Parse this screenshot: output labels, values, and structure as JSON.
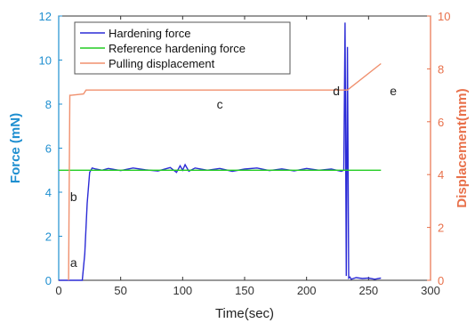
{
  "chart_data": {
    "type": "line",
    "x_axis": {
      "label": "Time(sec)",
      "lim": [
        0,
        300
      ],
      "ticks": [
        0,
        50,
        100,
        150,
        200,
        250,
        300
      ]
    },
    "y_left": {
      "label": "Force (mN)",
      "lim": [
        0,
        12
      ],
      "ticks": [
        0,
        2,
        4,
        6,
        8,
        10,
        12
      ],
      "color": "#1f8fd0"
    },
    "y_right": {
      "label": "Displacement(mm)",
      "lim": [
        0,
        10
      ],
      "ticks": [
        0,
        2,
        4,
        6,
        8,
        10
      ],
      "color": "#e8704a"
    },
    "legend_position": "top-left",
    "series": [
      {
        "name": "Hardening force",
        "axis": "left",
        "color": "#2b2bd6",
        "x": [
          0,
          19,
          21,
          23,
          25,
          27,
          30,
          35,
          40,
          50,
          60,
          70,
          80,
          90,
          95,
          98,
          100,
          102,
          105,
          110,
          120,
          130,
          140,
          150,
          160,
          170,
          180,
          190,
          200,
          210,
          220,
          228,
          230,
          231,
          232,
          233,
          234,
          235,
          236,
          240,
          245,
          250,
          255,
          260
        ],
        "y": [
          0,
          0,
          1.2,
          3.5,
          4.9,
          5.1,
          5.05,
          5.0,
          5.08,
          4.98,
          5.1,
          5.02,
          4.96,
          5.12,
          4.9,
          5.2,
          5.0,
          5.25,
          4.95,
          5.1,
          5.0,
          5.08,
          4.95,
          5.05,
          5.1,
          4.98,
          5.06,
          4.97,
          5.08,
          5.0,
          5.05,
          4.95,
          5.0,
          11.7,
          0.2,
          10.6,
          0.1,
          0.15,
          0.05,
          0.12,
          0.08,
          0.1,
          0.05,
          0.1
        ]
      },
      {
        "name": "Reference hardening force",
        "axis": "left",
        "color": "#22cc22",
        "x": [
          0,
          260
        ],
        "y": [
          5,
          5
        ]
      },
      {
        "name": "Pulling displacement",
        "axis": "right",
        "color": "#f0906e",
        "x": [
          8,
          9,
          10,
          20,
          22,
          230,
          233,
          260
        ],
        "y": [
          0,
          7.0,
          7.0,
          7.05,
          7.2,
          7.2,
          7.2,
          8.2
        ]
      }
    ],
    "annotations": [
      {
        "text": "a",
        "x": 12,
        "y": 0.6
      },
      {
        "text": "b",
        "x": 12,
        "y": 3.6
      },
      {
        "text": "c",
        "x": 130,
        "y": 7.8
      },
      {
        "text": "d",
        "x": 224,
        "y": 8.4
      },
      {
        "text": "e",
        "x": 270,
        "y": 8.4
      }
    ]
  }
}
